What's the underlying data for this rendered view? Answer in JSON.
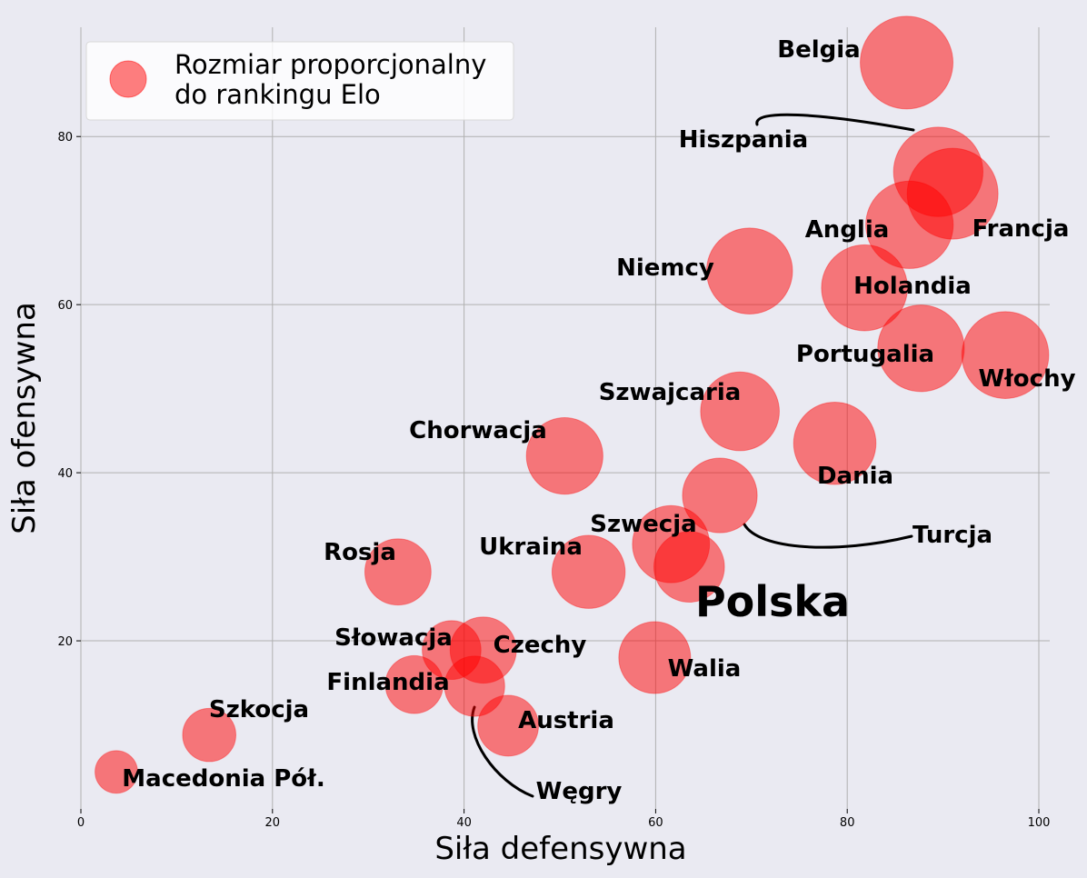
{
  "chart_data": {
    "type": "scatter",
    "title": "",
    "xlabel": "Siła defensywna",
    "ylabel": "Siła ofensywna",
    "xlim": [
      0,
      101
    ],
    "ylim": [
      0,
      93
    ],
    "xticks": [
      0,
      20,
      40,
      60,
      80,
      100
    ],
    "yticks": [
      20,
      40,
      60,
      80
    ],
    "grid": true,
    "legend": {
      "placement": "top-left",
      "lines": [
        "Rozmiar proporcjonalny",
        "do rankingu Elo"
      ]
    },
    "marker_color": "#ff0000",
    "marker_opacity": 0.5,
    "points": [
      {
        "name": "Belgia",
        "x": 86.2,
        "y": 88.8,
        "size": 1.0
      },
      {
        "name": "Hiszpania",
        "x": 89.5,
        "y": 75.8,
        "size": 0.93
      },
      {
        "name": "Francja",
        "x": 91.0,
        "y": 73.2,
        "size": 0.96
      },
      {
        "name": "Anglia",
        "x": 86.5,
        "y": 69.5,
        "size": 0.89
      },
      {
        "name": "Niemcy",
        "x": 69.8,
        "y": 64.0,
        "size": 0.86
      },
      {
        "name": "Holandia",
        "x": 81.8,
        "y": 62.0,
        "size": 0.86
      },
      {
        "name": "Portugalia",
        "x": 87.7,
        "y": 54.8,
        "size": 0.87
      },
      {
        "name": "Włochy",
        "x": 96.5,
        "y": 54.0,
        "size": 0.88
      },
      {
        "name": "Szwajcaria",
        "x": 68.8,
        "y": 47.3,
        "size": 0.72
      },
      {
        "name": "Dania",
        "x": 78.7,
        "y": 43.5,
        "size": 0.79
      },
      {
        "name": "Chorwacja",
        "x": 50.5,
        "y": 42.0,
        "size": 0.68
      },
      {
        "name": "Turcja",
        "x": 66.7,
        "y": 37.3,
        "size": 0.65
      },
      {
        "name": "Szwecja",
        "x": 61.6,
        "y": 31.5,
        "size": 0.69
      },
      {
        "name": "Polska",
        "x": 63.5,
        "y": 28.8,
        "size": 0.58
      },
      {
        "name": "Ukraina",
        "x": 53.0,
        "y": 28.2,
        "size": 0.62
      },
      {
        "name": "Rosja",
        "x": 33.1,
        "y": 28.2,
        "size": 0.51
      },
      {
        "name": "Walia",
        "x": 59.9,
        "y": 18.0,
        "size": 0.6
      },
      {
        "name": "Czechy",
        "x": 42.0,
        "y": 18.9,
        "size": 0.51
      },
      {
        "name": "Słowacja",
        "x": 38.7,
        "y": 18.9,
        "size": 0.4
      },
      {
        "name": "Finlandia",
        "x": 34.8,
        "y": 14.8,
        "size": 0.39
      },
      {
        "name": "Węgry",
        "x": 41.1,
        "y": 14.6,
        "size": 0.42
      },
      {
        "name": "Austria",
        "x": 44.6,
        "y": 9.9,
        "size": 0.43
      },
      {
        "name": "Szkocja",
        "x": 13.4,
        "y": 8.8,
        "size": 0.33
      },
      {
        "name": "Macedonia Pół.",
        "x": 3.7,
        "y": 4.4,
        "size": 0.21
      }
    ]
  }
}
